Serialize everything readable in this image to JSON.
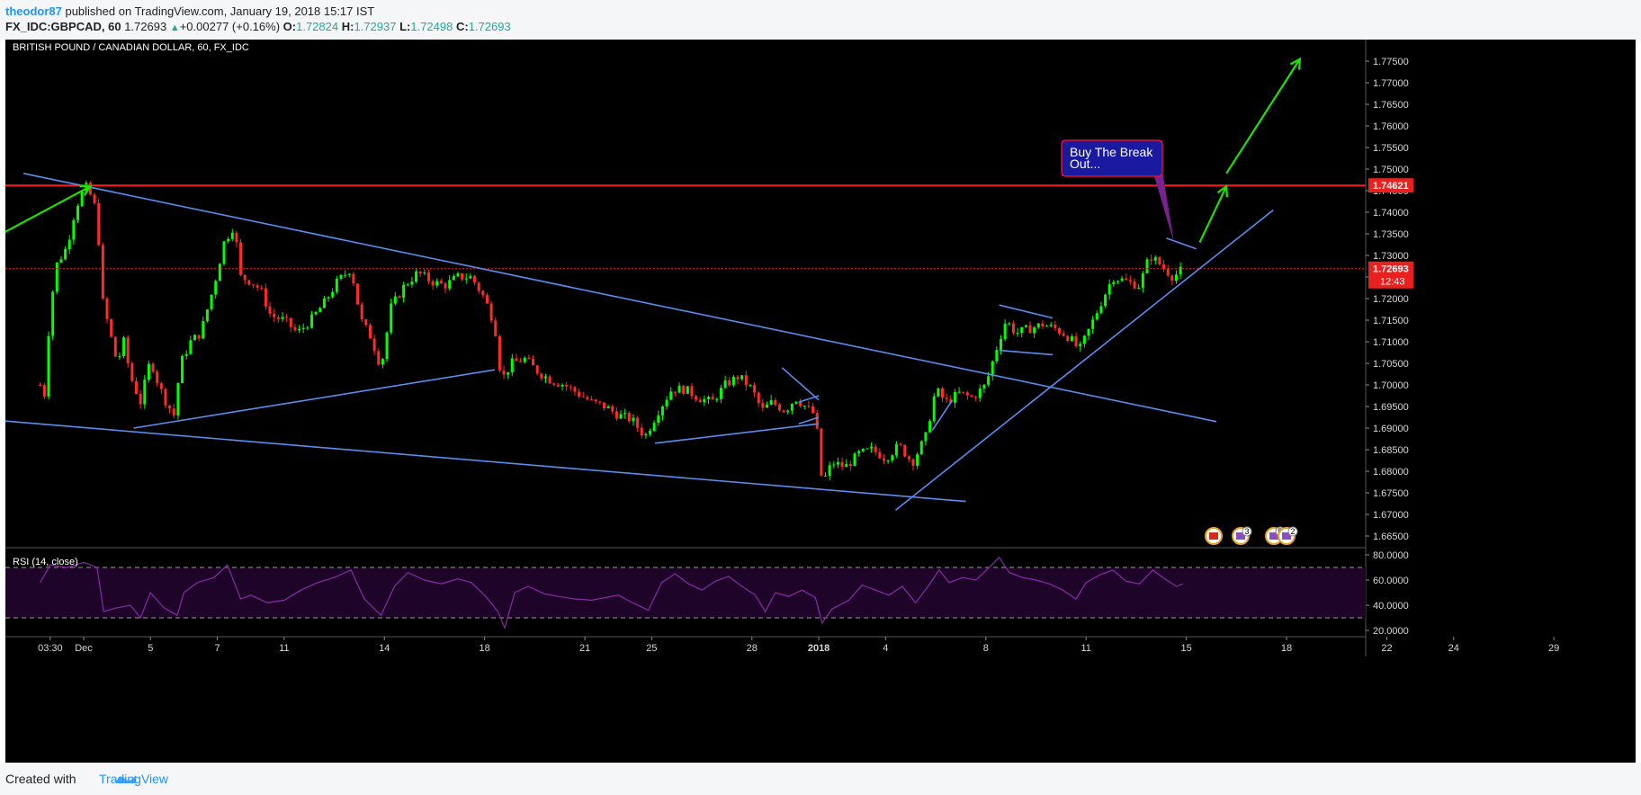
{
  "header": {
    "author": "theodor87",
    "published": "published on TradingView.com, January 19, 2018 15:17 IST",
    "symbol": "FX_IDC:GBPCAD, 60",
    "last": "1.72693",
    "change": "+0.00277 (+0.16%)",
    "o_label": "O:",
    "o_value": "1.72824",
    "h_label": "H:",
    "h_value": "1.72937",
    "l_label": "L:",
    "l_value": "1.72498",
    "c_label": "C:",
    "c_value": "1.72693"
  },
  "footer": {
    "created_with": "Created with",
    "brand": "TradingView"
  },
  "colors": {
    "background": "#000000",
    "up": "#00ff00",
    "down": "#ff2a2a",
    "trendline": "#5b8def",
    "resistance": "#ff1a1a",
    "arrow": "#22e000",
    "rsi": "#8a2aa8",
    "callout_fill": "#1a1aa0",
    "callout_border": "#e0102b"
  },
  "chart_data": [
    {
      "type": "candlestick",
      "title": "BRITISH POUND / CANADIAN DOLLAR, 60, FX_IDC",
      "ylim": [
        1.6625,
        1.78
      ],
      "y_ticks": [
        "1.77500",
        "1.77000",
        "1.76500",
        "1.76000",
        "1.75500",
        "1.75000",
        "1.74500",
        "1.74000",
        "1.73500",
        "1.73000",
        "1.72500",
        "1.72000",
        "1.71500",
        "1.71000",
        "1.70500",
        "1.70000",
        "1.69500",
        "1.69000",
        "1.68500",
        "1.68000",
        "1.67500",
        "1.67000",
        "1.66500"
      ],
      "x_ticks": [
        "03:30",
        "Dec",
        "5",
        "7",
        "11",
        "14",
        "18",
        "21",
        "25",
        "28",
        "2018",
        "4",
        "8",
        "11",
        "15",
        "18",
        "22",
        "24",
        "29"
      ],
      "x_tick_days": [
        -1,
        0,
        2,
        4,
        6,
        9,
        12,
        15,
        17,
        20,
        22,
        24,
        27,
        30,
        33,
        36,
        39,
        41,
        44
      ],
      "price_path": [
        [
          -1.3,
          1.7
        ],
        [
          -1.2,
          1.695
        ],
        [
          -1.0,
          1.718
        ],
        [
          -0.8,
          1.728
        ],
        [
          -0.5,
          1.732
        ],
        [
          -0.3,
          1.739
        ],
        [
          -0.1,
          1.744
        ],
        [
          0.1,
          1.746
        ],
        [
          0.4,
          1.74
        ],
        [
          0.55,
          1.72
        ],
        [
          0.7,
          1.715
        ],
        [
          1.0,
          1.705
        ],
        [
          1.2,
          1.71
        ],
        [
          1.4,
          1.702
        ],
        [
          1.7,
          1.696
        ],
        [
          2.0,
          1.706
        ],
        [
          2.2,
          1.701
        ],
        [
          2.4,
          1.697
        ],
        [
          2.7,
          1.693
        ],
        [
          2.9,
          1.705
        ],
        [
          3.2,
          1.71
        ],
        [
          3.5,
          1.712
        ],
        [
          3.9,
          1.723
        ],
        [
          4.2,
          1.733
        ],
        [
          4.5,
          1.737
        ],
        [
          4.7,
          1.725
        ],
        [
          5.0,
          1.724
        ],
        [
          5.3,
          1.722
        ],
        [
          5.6,
          1.716
        ],
        [
          6.0,
          1.715
        ],
        [
          6.4,
          1.712
        ],
        [
          6.8,
          1.715
        ],
        [
          7.2,
          1.719
        ],
        [
          7.6,
          1.724
        ],
        [
          8.0,
          1.727
        ],
        [
          8.3,
          1.715
        ],
        [
          8.6,
          1.711
        ],
        [
          8.9,
          1.704
        ],
        [
          9.2,
          1.718
        ],
        [
          9.6,
          1.723
        ],
        [
          10.0,
          1.726
        ],
        [
          10.4,
          1.724
        ],
        [
          10.8,
          1.723
        ],
        [
          11.2,
          1.725
        ],
        [
          11.6,
          1.725
        ],
        [
          12.0,
          1.72
        ],
        [
          12.3,
          1.714
        ],
        [
          12.5,
          1.701
        ],
        [
          12.8,
          1.705
        ],
        [
          13.2,
          1.706
        ],
        [
          13.6,
          1.703
        ],
        [
          14.0,
          1.701
        ],
        [
          14.4,
          1.7
        ],
        [
          14.8,
          1.698
        ],
        [
          15.2,
          1.696
        ],
        [
          15.6,
          1.695
        ],
        [
          16.0,
          1.693
        ],
        [
          16.4,
          1.692
        ],
        [
          16.8,
          1.688
        ],
        [
          17.2,
          1.694
        ],
        [
          17.6,
          1.699
        ],
        [
          18.0,
          1.699
        ],
        [
          18.4,
          1.697
        ],
        [
          18.8,
          1.696
        ],
        [
          19.2,
          1.7
        ],
        [
          19.6,
          1.702
        ],
        [
          20.0,
          1.699
        ],
        [
          20.3,
          1.694
        ],
        [
          20.6,
          1.696
        ],
        [
          21.0,
          1.694
        ],
        [
          21.3,
          1.697
        ],
        [
          21.6,
          1.695
        ],
        [
          21.9,
          1.693
        ],
        [
          22.1,
          1.677
        ],
        [
          22.4,
          1.682
        ],
        [
          22.8,
          1.681
        ],
        [
          23.2,
          1.684
        ],
        [
          23.6,
          1.685
        ],
        [
          24.0,
          1.683
        ],
        [
          24.4,
          1.686
        ],
        [
          24.8,
          1.682
        ],
        [
          25.2,
          1.688
        ],
        [
          25.5,
          1.699
        ],
        [
          25.8,
          1.696
        ],
        [
          26.2,
          1.698
        ],
        [
          26.6,
          1.697
        ],
        [
          27.0,
          1.7
        ],
        [
          27.3,
          1.708
        ],
        [
          27.6,
          1.715
        ],
        [
          27.9,
          1.712
        ],
        [
          28.3,
          1.713
        ],
        [
          28.7,
          1.714
        ],
        [
          29.1,
          1.713
        ],
        [
          29.5,
          1.711
        ],
        [
          29.8,
          1.708
        ],
        [
          30.1,
          1.713
        ],
        [
          30.5,
          1.72
        ],
        [
          30.8,
          1.725
        ],
        [
          31.2,
          1.724
        ],
        [
          31.6,
          1.723
        ],
        [
          31.9,
          1.73
        ],
        [
          32.2,
          1.728
        ],
        [
          32.6,
          1.725
        ],
        [
          32.9,
          1.7269
        ]
      ],
      "annotations": {
        "resistance_price": 1.74621,
        "resistance_label": "1.74621",
        "last_price_label": "1.72693",
        "countdown": "12:43",
        "callout_line1": "Buy The Break",
        "callout_line2": "Out..."
      },
      "trendlines": [
        {
          "from": [
            -1.8,
            1.749
          ],
          "to": [
            33.9,
            1.6915
          ]
        },
        {
          "from": [
            -2.9,
            1.692
          ],
          "to": [
            26.4,
            1.673
          ]
        },
        {
          "from": [
            1.5,
            1.69
          ],
          "to": [
            12.3,
            1.7035
          ]
        },
        {
          "from": [
            17.1,
            1.6865
          ],
          "to": [
            22.0,
            1.691
          ]
        },
        {
          "from": [
            20.9,
            1.704
          ],
          "to": [
            22.0,
            1.6965
          ]
        },
        {
          "from": [
            21.4,
            1.691
          ],
          "to": [
            22.0,
            1.6925
          ]
        },
        {
          "from": [
            21.4,
            1.696
          ],
          "to": [
            22.0,
            1.6975
          ]
        },
        {
          "from": [
            24.3,
            1.671
          ],
          "to": [
            35.6,
            1.7405
          ]
        },
        {
          "from": [
            25.4,
            1.6895
          ],
          "to": [
            26.0,
            1.6965
          ]
        },
        {
          "from": [
            27.4,
            1.7185
          ],
          "to": [
            29.0,
            1.7155
          ]
        },
        {
          "from": [
            27.4,
            1.708
          ],
          "to": [
            29.0,
            1.707
          ]
        },
        {
          "from": [
            32.4,
            1.734
          ],
          "to": [
            33.3,
            1.7315
          ]
        }
      ],
      "arrows": [
        {
          "from": [
            -3.3,
            1.7315
          ],
          "to": [
            0.2,
            1.746
          ]
        },
        {
          "from": [
            33.4,
            1.733
          ],
          "to": [
            34.2,
            1.746
          ]
        },
        {
          "from": [
            34.2,
            1.749
          ],
          "to": [
            36.4,
            1.7755
          ]
        }
      ],
      "event_badges": [
        {
          "flag": "CA",
          "count": ""
        },
        {
          "flag": "GB",
          "count": "3"
        },
        {
          "flag": "GB",
          "count": "5"
        },
        {
          "flag": "GB",
          "count": "2"
        }
      ]
    },
    {
      "type": "line",
      "title": "RSI (14, close)",
      "ylim": [
        15,
        85
      ],
      "y_ticks": [
        "80.0000",
        "60.0000",
        "40.0000",
        "20.0000"
      ],
      "bands": [
        30,
        70
      ],
      "rsi_path": [
        [
          -1.3,
          58
        ],
        [
          -1.0,
          72
        ],
        [
          -0.5,
          70
        ],
        [
          0.0,
          74
        ],
        [
          0.4,
          70
        ],
        [
          0.6,
          35
        ],
        [
          1.0,
          38
        ],
        [
          1.4,
          40
        ],
        [
          1.7,
          30
        ],
        [
          2.0,
          50
        ],
        [
          2.4,
          38
        ],
        [
          2.8,
          32
        ],
        [
          3.0,
          50
        ],
        [
          3.4,
          58
        ],
        [
          3.9,
          62
        ],
        [
          4.3,
          72
        ],
        [
          4.7,
          45
        ],
        [
          5.0,
          48
        ],
        [
          5.5,
          42
        ],
        [
          6.0,
          44
        ],
        [
          6.5,
          52
        ],
        [
          7.0,
          58
        ],
        [
          7.5,
          62
        ],
        [
          8.0,
          68
        ],
        [
          8.4,
          45
        ],
        [
          8.9,
          32
        ],
        [
          9.3,
          55
        ],
        [
          9.7,
          66
        ],
        [
          10.2,
          60
        ],
        [
          10.7,
          57
        ],
        [
          11.2,
          61
        ],
        [
          11.6,
          58
        ],
        [
          12.0,
          48
        ],
        [
          12.4,
          35
        ],
        [
          12.6,
          22
        ],
        [
          12.9,
          50
        ],
        [
          13.3,
          55
        ],
        [
          13.8,
          49
        ],
        [
          14.2,
          47
        ],
        [
          14.7,
          45
        ],
        [
          15.2,
          44
        ],
        [
          15.6,
          46
        ],
        [
          16.0,
          48
        ],
        [
          16.5,
          41
        ],
        [
          16.9,
          36
        ],
        [
          17.3,
          58
        ],
        [
          17.7,
          65
        ],
        [
          18.1,
          57
        ],
        [
          18.5,
          52
        ],
        [
          18.9,
          59
        ],
        [
          19.3,
          63
        ],
        [
          19.7,
          55
        ],
        [
          20.1,
          48
        ],
        [
          20.4,
          35
        ],
        [
          20.7,
          50
        ],
        [
          21.1,
          47
        ],
        [
          21.5,
          52
        ],
        [
          21.9,
          46
        ],
        [
          22.1,
          26
        ],
        [
          22.4,
          37
        ],
        [
          22.9,
          44
        ],
        [
          23.3,
          56
        ],
        [
          23.7,
          52
        ],
        [
          24.1,
          48
        ],
        [
          24.5,
          55
        ],
        [
          24.9,
          42
        ],
        [
          25.3,
          56
        ],
        [
          25.6,
          68
        ],
        [
          25.9,
          58
        ],
        [
          26.3,
          62
        ],
        [
          26.7,
          60
        ],
        [
          27.1,
          70
        ],
        [
          27.4,
          78
        ],
        [
          27.7,
          66
        ],
        [
          28.1,
          62
        ],
        [
          28.5,
          60
        ],
        [
          28.9,
          57
        ],
        [
          29.3,
          52
        ],
        [
          29.7,
          45
        ],
        [
          30.0,
          58
        ],
        [
          30.4,
          64
        ],
        [
          30.8,
          68
        ],
        [
          31.2,
          59
        ],
        [
          31.6,
          57
        ],
        [
          32.0,
          68
        ],
        [
          32.3,
          62
        ],
        [
          32.7,
          55
        ],
        [
          32.9,
          57
        ]
      ]
    }
  ]
}
